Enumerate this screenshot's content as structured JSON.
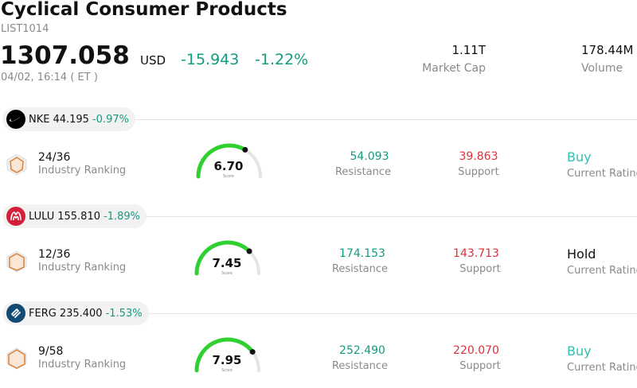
{
  "header": {
    "title": "Cyclical Consumer Products",
    "code": "LIST1014",
    "price": "1307.058",
    "currency": "USD",
    "change": "-15.943",
    "change_pct": "-1.22%",
    "timestamp": "04/02, 16:14  ( ET )",
    "market_cap_value": "1.11T",
    "market_cap_label": "Market Cap",
    "volume_value": "178.44M",
    "volume_label": "Volume"
  },
  "colors": {
    "positive_text": "#119c80",
    "negative_text": "#e0303a",
    "gauge_arc": "#2fd02f",
    "buy": "#2fc0b2"
  },
  "stocks": [
    {
      "ticker": "NKE",
      "price": "44.195",
      "change_pct": "-0.97%",
      "logo_icon": "nike-swoosh-icon",
      "rank": "24/36",
      "rank_label": "Industry Ranking",
      "score": "6.70",
      "score_label": "Score",
      "score_fraction": 0.67,
      "resistance": "54.093",
      "resistance_label": "Resistance",
      "support": "39.863",
      "support_label": "Support",
      "rating": "Buy",
      "rating_label": "Current Rating"
    },
    {
      "ticker": "LULU",
      "price": "155.810",
      "change_pct": "-1.89%",
      "logo_icon": "lululemon-logo-icon",
      "rank": "12/36",
      "rank_label": "Industry Ranking",
      "score": "7.45",
      "score_label": "Score",
      "score_fraction": 0.745,
      "resistance": "174.153",
      "resistance_label": "Resistance",
      "support": "143.713",
      "support_label": "Support",
      "rating": "Hold",
      "rating_label": "Current Rating"
    },
    {
      "ticker": "FERG",
      "price": "235.400",
      "change_pct": "-1.53%",
      "logo_icon": "ferguson-logo-icon",
      "rank": "9/58",
      "rank_label": "Industry Ranking",
      "score": "7.95",
      "score_label": "Score",
      "score_fraction": 0.795,
      "resistance": "252.490",
      "resistance_label": "Resistance",
      "support": "220.070",
      "support_label": "Support",
      "rating": "Buy",
      "rating_label": "Current Rating"
    }
  ]
}
